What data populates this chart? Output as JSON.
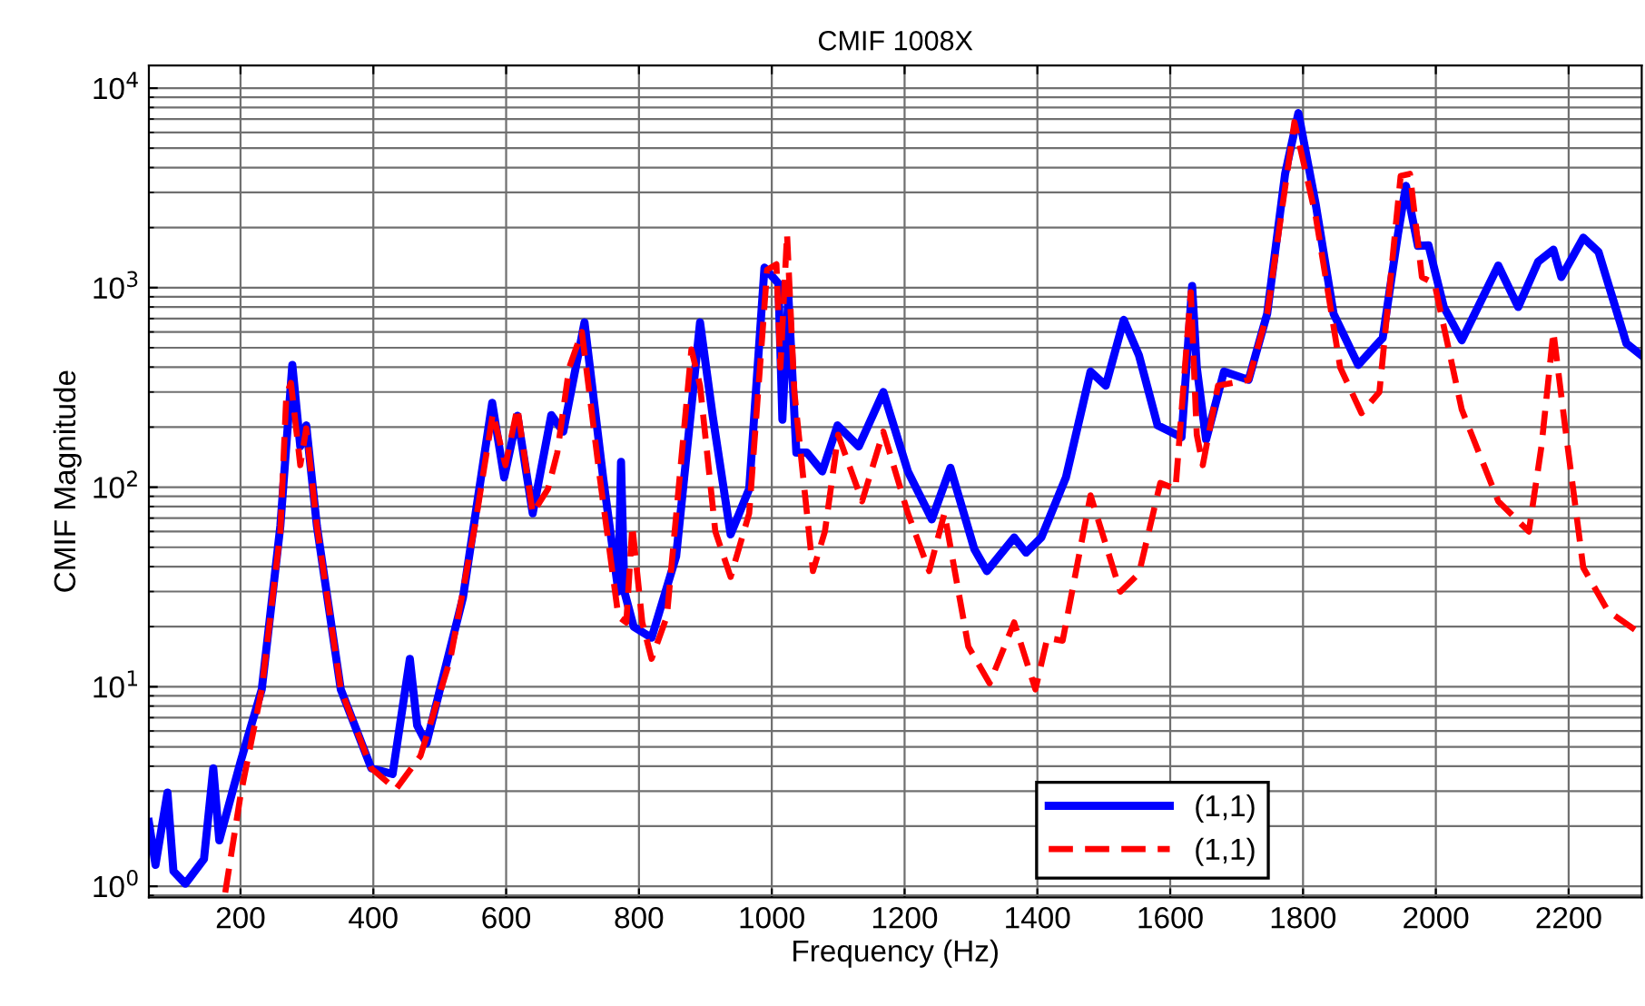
{
  "chart_data": {
    "type": "line",
    "title": "CMIF 1008X",
    "xlabel": "Frequency (Hz)",
    "ylabel": "CMIF Magnitude",
    "log": "y",
    "grid": true,
    "legend": "bottom right",
    "xlim": [
      62,
      2310
    ],
    "ylim": [
      0.88,
      13000
    ],
    "xticks": [
      200,
      400,
      600,
      800,
      1000,
      1200,
      1400,
      1600,
      1800,
      2000,
      2200
    ],
    "yticks": [
      {
        "value": 1,
        "label": "10$^{0}$"
      },
      {
        "value": 10,
        "label": "10$^{1}$"
      },
      {
        "value": 100,
        "label": "10$^{2}$"
      },
      {
        "value": 1000,
        "label": "10$^{3}$"
      },
      {
        "value": 10000,
        "label": "10$^{4}$"
      }
    ],
    "series": [
      {
        "name": "(1,1)",
        "color": "#0000ff",
        "line_style": "solid",
        "x": [
          62,
          72,
          90,
          99,
          117,
          145,
          159,
          168,
          200,
          232,
          260,
          278,
          290,
          299,
          315,
          351,
          397,
          429,
          455,
          466,
          480,
          535,
          579,
          597,
          617,
          640,
          668,
          686,
          718,
          746,
          769,
          773,
          778,
          792,
          819,
          856,
          892,
          911,
          938,
          966,
          989,
          1010,
          1016,
          1025,
          1037,
          1053,
          1076,
          1099,
          1131,
          1168,
          1205,
          1241,
          1269,
          1305,
          1324,
          1365,
          1383,
          1406,
          1443,
          1480,
          1503,
          1530,
          1553,
          1581,
          1617,
          1633,
          1640,
          1654,
          1681,
          1718,
          1746,
          1773,
          1793,
          1819,
          1846,
          1883,
          1920,
          1943,
          1955,
          1973,
          1989,
          2012,
          2039,
          2094,
          2124,
          2154,
          2177,
          2189,
          2222,
          2245,
          2287,
          2310
        ],
        "values": [
          2.1,
          1.28,
          2.95,
          1.19,
          1.03,
          1.37,
          3.9,
          1.7,
          4.2,
          9.7,
          64,
          410,
          160,
          204,
          64,
          9.7,
          3.9,
          3.65,
          13.8,
          6.4,
          5.2,
          28,
          265,
          112,
          228,
          74,
          230,
          190,
          670,
          112,
          30,
          134,
          30,
          20,
          17.6,
          45,
          670,
          228,
          58,
          98,
          1260,
          1050,
          218,
          910,
          149,
          149,
          120,
          204,
          160,
          300,
          120,
          69,
          125,
          49,
          38,
          56,
          47,
          56,
          112,
          380,
          323,
          690,
          457,
          204,
          178,
          1020,
          398,
          173,
          380,
          345,
          740,
          3720,
          7500,
          2630,
          740,
          410,
          560,
          1860,
          3240,
          1620,
          1630,
          800,
          545,
          1290,
          800,
          1350,
          1550,
          1130,
          1780,
          1510,
          525,
          457
        ]
      },
      {
        "name": "(1,1)",
        "color": "#ff0000",
        "line_style": "dashed",
        "x": [
          177,
          200,
          232,
          260,
          269,
          276,
          290,
          299,
          315,
          351,
          397,
          434,
          471,
          516,
          553,
          580,
          599,
          617,
          640,
          663,
          677,
          695,
          714,
          741,
          769,
          781,
          790,
          805,
          819,
          842,
          879,
          892,
          915,
          938,
          966,
          993,
          1007,
          1013,
          1023,
          1034,
          1062,
          1080,
          1100,
          1136,
          1168,
          1205,
          1237,
          1260,
          1296,
          1328,
          1365,
          1397,
          1415,
          1438,
          1480,
          1525,
          1553,
          1585,
          1608,
          1631,
          1640,
          1649,
          1672,
          1718,
          1746,
          1787,
          1819,
          1856,
          1888,
          1915,
          1947,
          1961,
          1979,
          1998,
          2039,
          2094,
          2140,
          2159,
          2177,
          2195,
          2222,
          2259,
          2310
        ],
        "values": [
          0.93,
          2.86,
          9.7,
          60,
          290,
          333,
          129,
          197,
          64,
          9.7,
          3.9,
          3.06,
          4.5,
          13.8,
          64,
          235,
          129,
          250,
          74,
          98,
          149,
          398,
          600,
          112,
          22.5,
          21,
          64,
          21,
          13.8,
          22.5,
          490,
          323,
          60,
          35.5,
          74,
          1230,
          1310,
          398,
          1860,
          300,
          38,
          60,
          183,
          85,
          190,
          74,
          38,
          74,
          15.9,
          10.4,
          21,
          9.7,
          17.6,
          17,
          91,
          30,
          37,
          105,
          98,
          950,
          183,
          129,
          323,
          345,
          740,
          6760,
          2290,
          398,
          235,
          300,
          3630,
          3720,
          1130,
          1050,
          245,
          85,
          60,
          160,
          600,
          197,
          39.5,
          24,
          18.3
        ]
      }
    ]
  }
}
